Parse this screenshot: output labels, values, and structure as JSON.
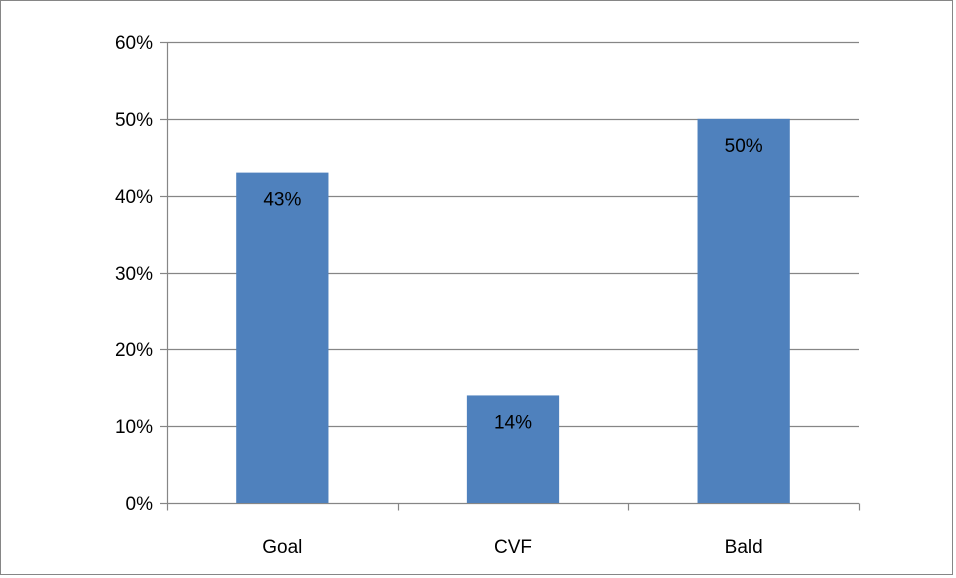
{
  "chart_data": {
    "type": "bar",
    "categories": [
      "Goal",
      "CVF",
      "Bald"
    ],
    "values": [
      43,
      14,
      50
    ],
    "value_labels": [
      "43%",
      "14%",
      "50%"
    ],
    "ylim": [
      0,
      60
    ],
    "yticks": [
      0,
      10,
      20,
      30,
      40,
      50,
      60
    ],
    "ytick_labels": [
      "0%",
      "10%",
      "20%",
      "30%",
      "40%",
      "50%",
      "60%"
    ],
    "title": "",
    "xlabel": "",
    "ylabel": "",
    "grid": true,
    "legend": "none",
    "bar_color": "#4F81BD",
    "gridline_color": "#868686"
  }
}
